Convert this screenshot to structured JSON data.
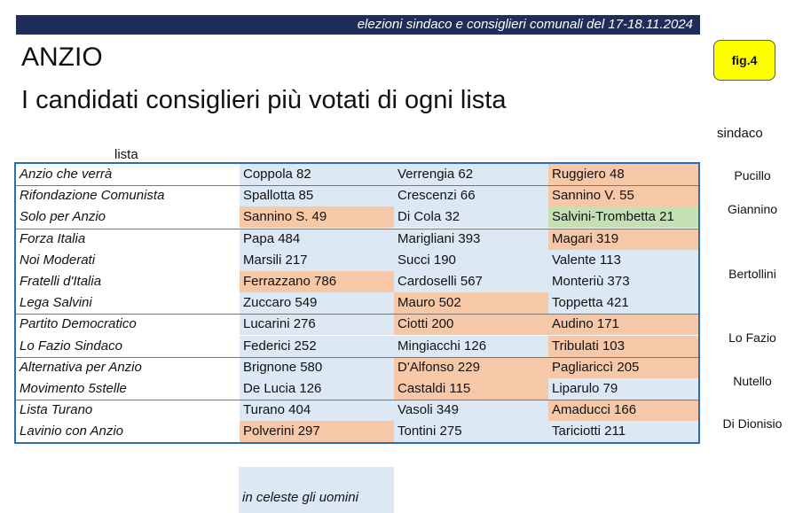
{
  "header": {
    "banner": "elezioni sindaco e consiglieri comunali del 17-18.11.2024",
    "city": "ANZIO",
    "title": "I candidati consiglieri più votati di ogni lista",
    "fig": "fig.4"
  },
  "labels": {
    "sindaco": "sindaco",
    "lista": "lista"
  },
  "rows": [
    {
      "list": "Anzio che verrà",
      "c": [
        {
          "t": "Coppola 82",
          "s": "m"
        },
        {
          "t": "Verrengia 62",
          "s": "m"
        },
        {
          "t": "Ruggiero 48",
          "s": "f"
        }
      ]
    },
    {
      "list": "Rifondazione Comunista",
      "c": [
        {
          "t": "Spallotta 85",
          "s": "m"
        },
        {
          "t": "Crescenzi 66",
          "s": "m"
        },
        {
          "t": "Sannino V. 55",
          "s": "f"
        }
      ]
    },
    {
      "list": "Solo per Anzio",
      "c": [
        {
          "t": "Sannino S. 49",
          "s": "f"
        },
        {
          "t": "Di Cola 32",
          "s": "m"
        },
        {
          "t": "Salvini-Trombetta 21",
          "s": "g"
        }
      ]
    },
    {
      "list": "Forza Italia",
      "c": [
        {
          "t": "Papa 484",
          "s": "m"
        },
        {
          "t": "Marigliani 393",
          "s": "m"
        },
        {
          "t": "Magari 319",
          "s": "f"
        }
      ]
    },
    {
      "list": "Noi Moderati",
      "c": [
        {
          "t": "Marsili 217",
          "s": "m"
        },
        {
          "t": "Succi 190",
          "s": "m"
        },
        {
          "t": "Valente 113",
          "s": "m"
        }
      ]
    },
    {
      "list": "Fratelli d'Italia",
      "c": [
        {
          "t": "Ferrazzano 786",
          "s": "f"
        },
        {
          "t": "Cardoselli 567",
          "s": "m"
        },
        {
          "t": "Monteriù 373",
          "s": "m"
        }
      ]
    },
    {
      "list": "Lega Salvini",
      "c": [
        {
          "t": "Zuccaro 549",
          "s": "m"
        },
        {
          "t": "Mauro 502",
          "s": "f"
        },
        {
          "t": "Toppetta 421",
          "s": "m"
        }
      ]
    },
    {
      "list": "Partito Democratico",
      "c": [
        {
          "t": "Lucarini 276",
          "s": "m"
        },
        {
          "t": "Ciotti 200",
          "s": "f"
        },
        {
          "t": "Audino 171",
          "s": "f"
        }
      ]
    },
    {
      "list": "Lo Fazio Sindaco",
      "c": [
        {
          "t": "Federici 252",
          "s": "m"
        },
        {
          "t": "Mingiacchi 126",
          "s": "m"
        },
        {
          "t": "Tribulati 103",
          "s": "f"
        }
      ]
    },
    {
      "list": "Alternativa per Anzio",
      "c": [
        {
          "t": "Brignone 580",
          "s": "m"
        },
        {
          "t": "D'Alfonso 229",
          "s": "f"
        },
        {
          "t": "Pagliariccì 205",
          "s": "f"
        }
      ]
    },
    {
      "list": "Movimento 5stelle",
      "c": [
        {
          "t": "De Lucia 126",
          "s": "m"
        },
        {
          "t": "Castaldi 115",
          "s": "f"
        },
        {
          "t": "Liparulo 79",
          "s": "m"
        }
      ]
    },
    {
      "list": "Lista Turano",
      "c": [
        {
          "t": "Turano 404",
          "s": "m"
        },
        {
          "t": "Vasoli 349",
          "s": "m"
        },
        {
          "t": "Amaducci 166",
          "s": "f"
        }
      ]
    },
    {
      "list": "Lavinio con Anzio",
      "c": [
        {
          "t": "Polverini 297",
          "s": "f"
        },
        {
          "t": "Tontini 275",
          "s": "m"
        },
        {
          "t": "Tariciotti 211",
          "s": "m"
        }
      ]
    }
  ],
  "mayors": [
    "Pucillo",
    "Giannino",
    "Bertollini",
    "Lo Fazio",
    "Nutello",
    "Di Dionisio"
  ],
  "legend": "in celeste gli uomini"
}
